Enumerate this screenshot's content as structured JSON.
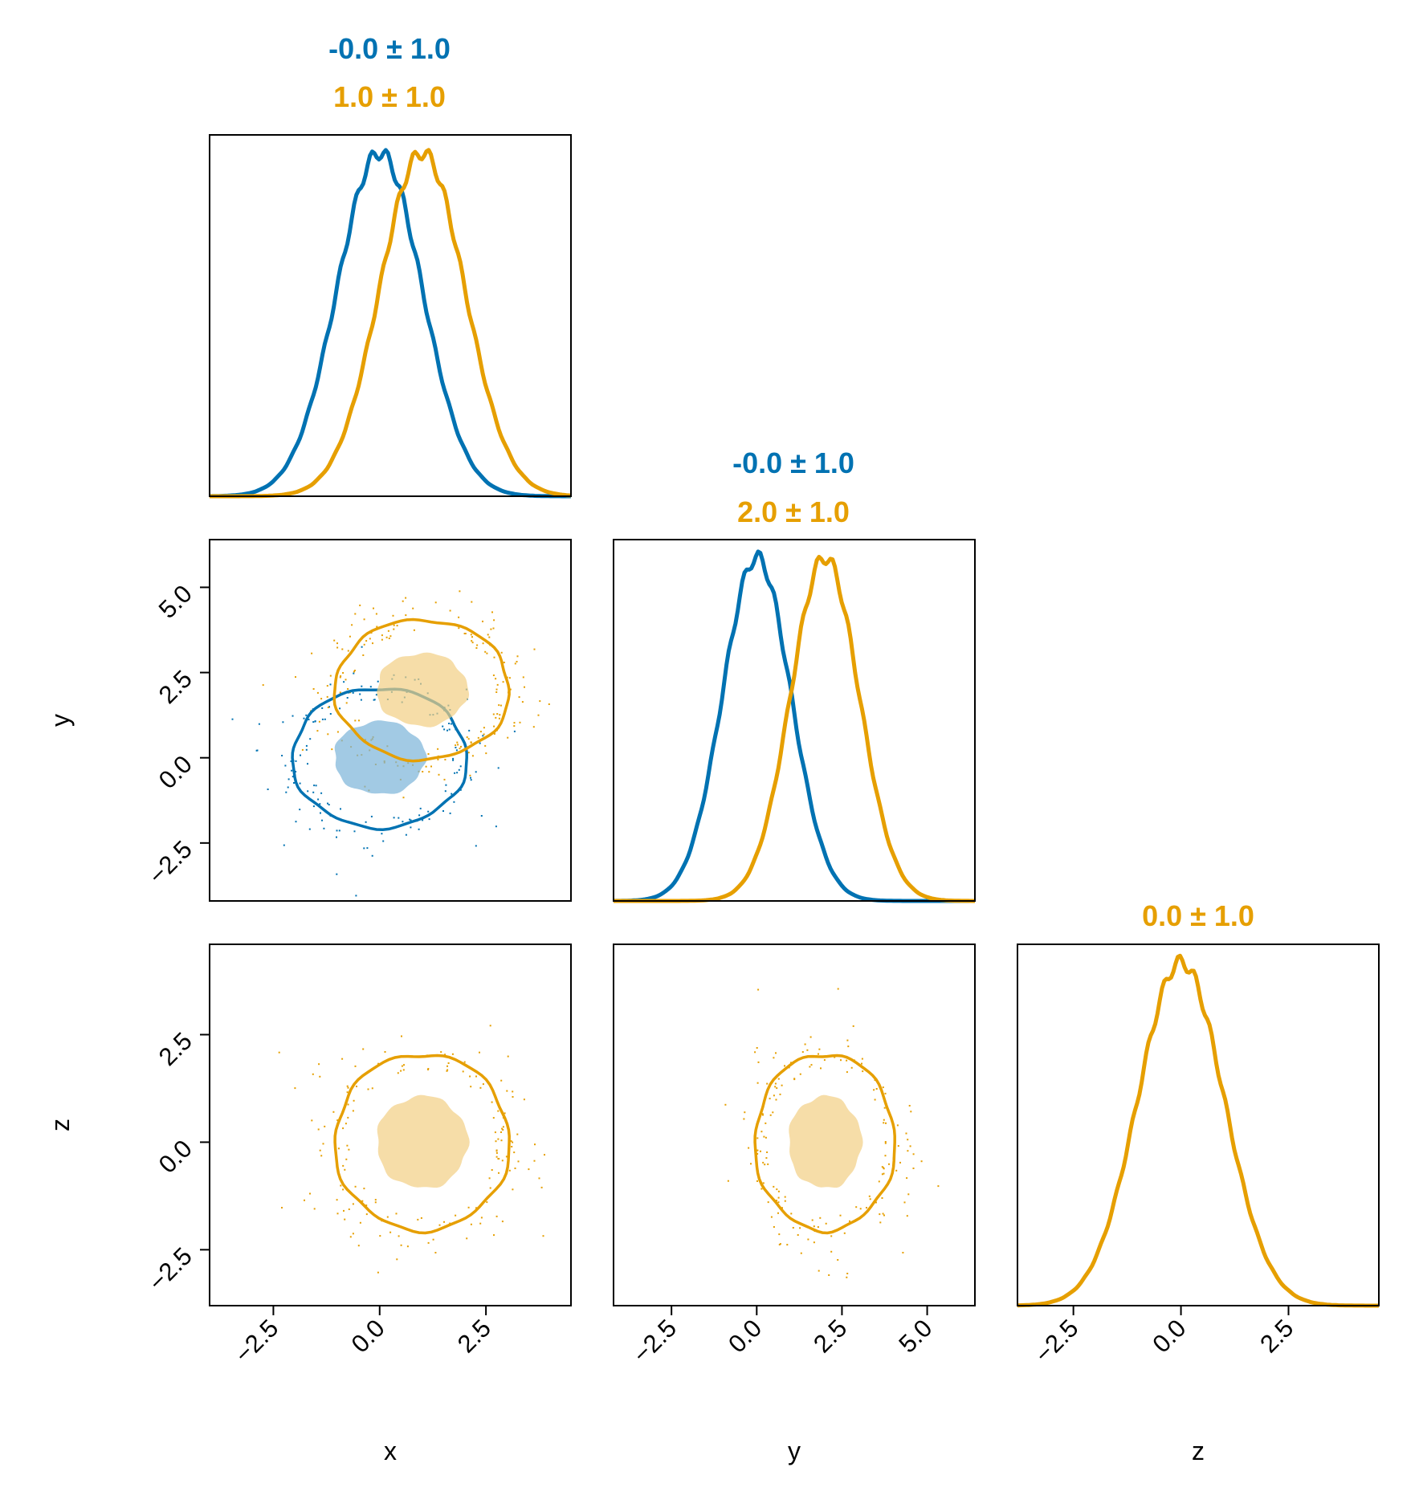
{
  "chart_data": {
    "type": "corner",
    "colors": {
      "series_a": "#0072B2",
      "series_b": "#E69F00"
    },
    "variables": [
      "x",
      "y",
      "z"
    ],
    "series": [
      {
        "color": "#0072B2",
        "means": {
          "x": 0.0,
          "y": 0.0
        },
        "stds": {
          "x": 1.0,
          "y": 1.0
        },
        "variables": [
          "x",
          "y"
        ]
      },
      {
        "color": "#E69F00",
        "means": {
          "x": 1.0,
          "y": 2.0,
          "z": 0.0
        },
        "stds": {
          "x": 1.0,
          "y": 1.0,
          "z": 1.0
        },
        "variables": [
          "x",
          "y",
          "z"
        ]
      }
    ],
    "titles": {
      "x": [
        "-0.0 ± 1.0",
        "1.0 ± 1.0"
      ],
      "y": [
        "-0.0 ± 1.0",
        "2.0 ± 1.0"
      ],
      "z": [
        "0.0 ± 1.0"
      ]
    },
    "axis_labels": {
      "x": "x",
      "y": "y",
      "z": "z"
    },
    "ranges": {
      "x": [
        -4.0,
        4.5
      ],
      "y": [
        -4.2,
        6.4
      ],
      "z": [
        -3.8,
        4.6
      ]
    },
    "ticks": {
      "x": [
        -2.5,
        0.0,
        2.5
      ],
      "y_bottom": [
        -2.5,
        0.0,
        2.5,
        5.0
      ],
      "y_left": [
        -2.5,
        0.0,
        2.5,
        5.0
      ],
      "z_bottom": [
        -2.5,
        0.0,
        2.5
      ],
      "z_left": [
        -2.5,
        0.0,
        2.5
      ]
    },
    "tick_labels": {
      "x": [
        "−2.5",
        "0.0",
        "2.5"
      ],
      "y_bottom": [
        "−2.5",
        "0.0",
        "2.5",
        "5.0"
      ],
      "y_left": [
        "−2.5",
        "0.0",
        "2.5",
        "5.0"
      ],
      "z_bottom": [
        "−2.5",
        "0.0",
        "2.5"
      ],
      "z_left": [
        "−2.5",
        "0.0",
        "2.5"
      ]
    },
    "marginals": "density curves on diagonal panels",
    "joint": "scatter points with filled inner 1-sigma region and outer 2-sigma contour line",
    "grid": false,
    "legend": "none"
  }
}
